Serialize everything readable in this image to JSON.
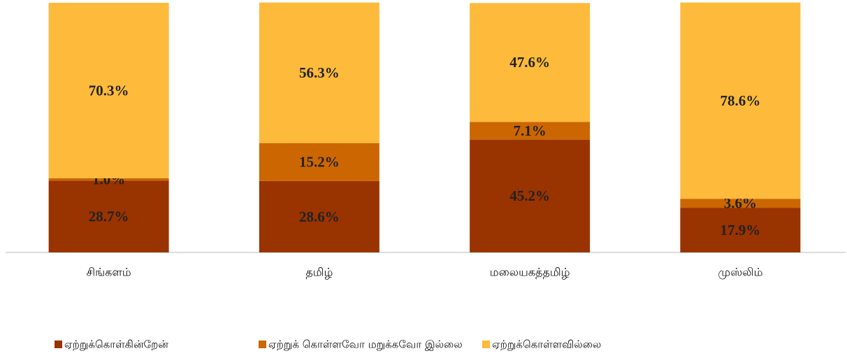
{
  "chart_data": {
    "type": "stacked_bar",
    "categories": [
      "சிங்களம்",
      "தமிழ்",
      "மலையகத்தமிழ்",
      "முஸ்லிம்"
    ],
    "series": [
      {
        "name": "ஏற்றுக்கொள்கின்றேன்",
        "color": "#993300",
        "values": [
          28.7,
          28.6,
          45.2,
          17.9
        ],
        "value_labels": [
          "28.7%",
          "28.6%",
          "45.2%",
          "17.9%"
        ]
      },
      {
        "name": "ஏற்றுக் கொள்ளவோ மறுக்கவோ இல்லை",
        "color": "#cc6600",
        "values": [
          1.0,
          15.2,
          7.1,
          3.6
        ],
        "value_labels": [
          "1.0%",
          "15.2%",
          "7.1%",
          "3.6%"
        ]
      },
      {
        "name": "ஏற்றுக்கொள்ளவில்லை",
        "color": "#fdba3b",
        "values": [
          70.3,
          56.3,
          47.6,
          78.6
        ],
        "value_labels": [
          "70.3%",
          "56.3%",
          "47.6%",
          "78.6%"
        ]
      }
    ],
    "ylim": [
      0,
      100
    ],
    "legend": "bottom"
  }
}
